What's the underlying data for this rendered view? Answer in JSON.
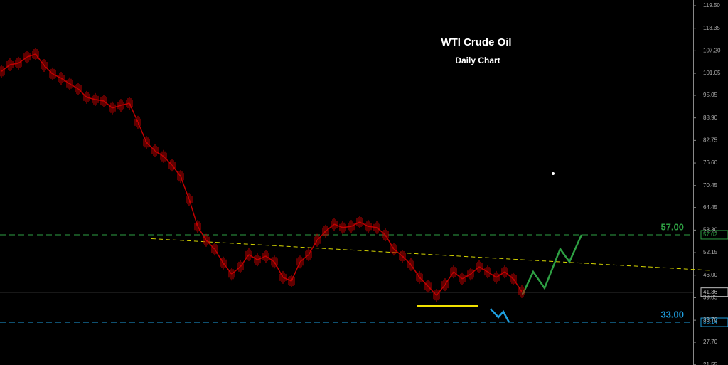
{
  "chart_data": {
    "type": "price-bars",
    "title": "WTI Crude Oil",
    "subtitle": "Daily Chart",
    "color": "#c00000",
    "values": [
      101.6,
      103.4,
      103.8,
      105.5,
      106.3,
      103.2,
      100.9,
      99.7,
      98.2,
      96.8,
      94.5,
      93.9,
      93.5,
      91.6,
      92.3,
      92.9,
      87.7,
      82.2,
      79.9,
      78.4,
      76.0,
      72.9,
      66.7,
      59.3,
      55.5,
      53.1,
      49.3,
      46.3,
      48.3,
      51.6,
      50.2,
      51.2,
      49.6,
      45.4,
      44.4,
      49.6,
      51.6,
      55.5,
      58.0,
      59.9,
      59.0,
      59.3,
      60.5,
      59.3,
      59.0,
      57.0,
      53.1,
      51.2,
      48.9,
      45.4,
      43.0,
      40.5,
      43.4,
      46.9,
      45.0,
      46.3,
      48.3,
      46.9,
      45.4,
      46.9,
      45.0,
      41.5
    ],
    "ylim": [
      21.5,
      121.05
    ],
    "yticks": [
      {
        "value": 119.5,
        "label": "119.50"
      },
      {
        "value": 113.35,
        "label": "113.35"
      },
      {
        "value": 107.2,
        "label": "107.20"
      },
      {
        "value": 101.05,
        "label": "101.05"
      },
      {
        "value": 95.05,
        "label": "95.05"
      },
      {
        "value": 88.9,
        "label": "88.90"
      },
      {
        "value": 82.75,
        "label": "82.75"
      },
      {
        "value": 76.6,
        "label": "76.60"
      },
      {
        "value": 70.45,
        "label": "70.45"
      },
      {
        "value": 64.45,
        "label": "64.45"
      },
      {
        "value": 58.3,
        "label": "58.30"
      },
      {
        "value": 52.15,
        "label": "52.15"
      },
      {
        "value": 46.0,
        "label": "46.00"
      },
      {
        "value": 39.85,
        "label": "39.85"
      },
      {
        "value": 33.7,
        "label": "33.70"
      },
      {
        "value": 27.7,
        "label": "27.70"
      },
      {
        "value": 21.55,
        "label": "21.55"
      }
    ],
    "levels": [
      {
        "value": 57.02,
        "label": "57.02",
        "color": "#2ea043",
        "annotation": "57.00"
      },
      {
        "value": 41.36,
        "label": "41.36",
        "color": "#bbbbbb"
      },
      {
        "value": 33.14,
        "label": "33.14",
        "color": "#1e9fe0",
        "annotation": "33.00"
      }
    ],
    "trendline": {
      "values": [
        55.95,
        47.3
      ],
      "color": "#d6d600"
    }
  }
}
